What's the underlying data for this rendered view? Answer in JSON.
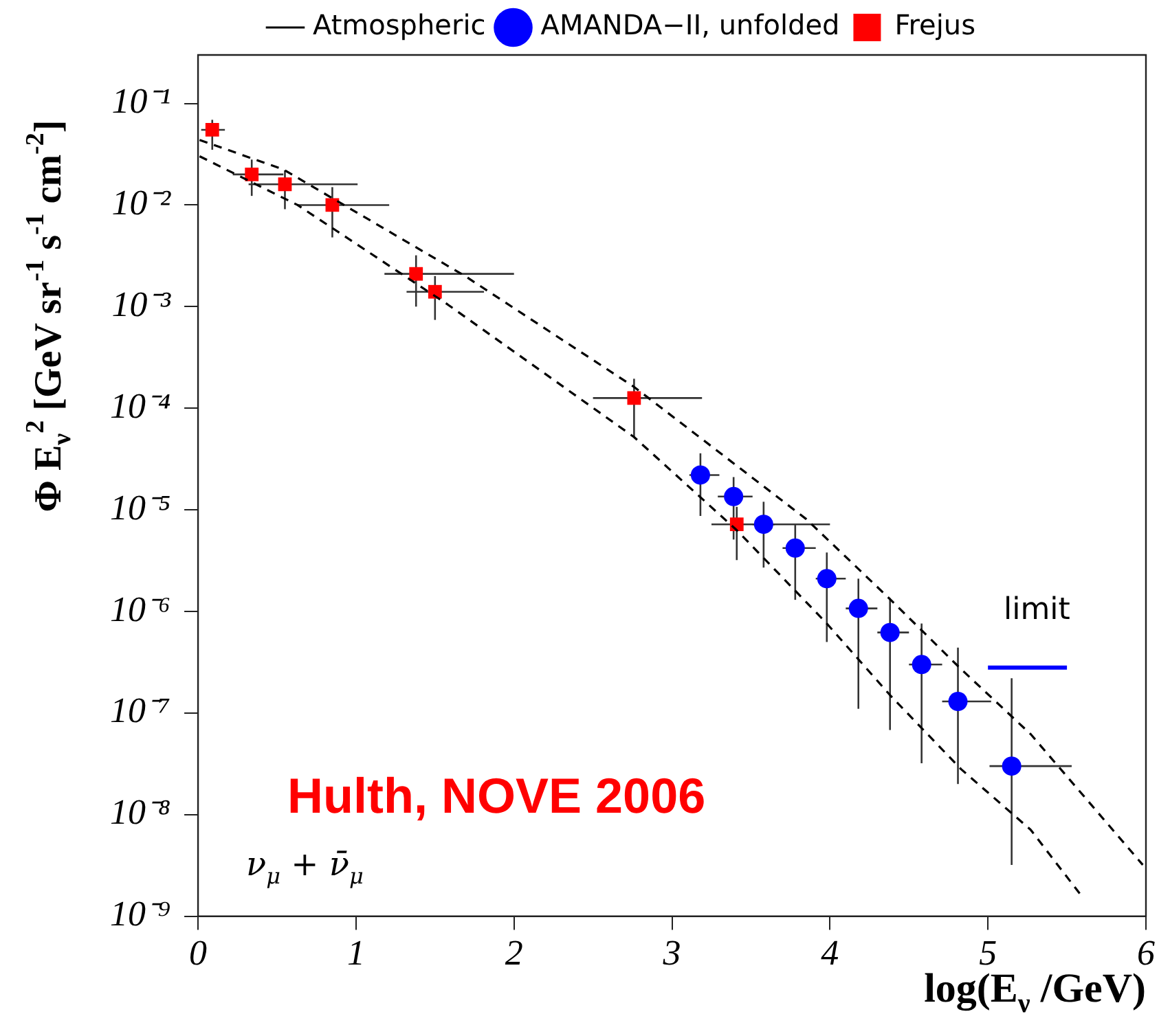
{
  "chart_data": {
    "type": "scatter",
    "xlabel": "log(E$_{ν}$ /GeV)",
    "ylabel": "Φ E$_{ν}$$^{2}$ [GeV sr$^{-1}$ s$^{-1}$ cm$^{-2}$]",
    "xlim": [
      0,
      6
    ],
    "xticks": [
      0,
      1,
      2,
      3,
      4,
      5,
      6
    ],
    "ylim": [
      1e-09,
      0.3
    ],
    "yticks": [
      {
        "value": 1e-09,
        "label": "10⁻⁹"
      },
      {
        "value": 1e-08,
        "label": "10⁻⁸"
      },
      {
        "value": 1e-07,
        "label": "10⁻⁷"
      },
      {
        "value": 1e-06,
        "label": "10⁻⁶"
      },
      {
        "value": 1e-05,
        "label": "10⁻⁵"
      },
      {
        "value": 0.0001,
        "label": "10⁻⁴"
      },
      {
        "value": 0.001,
        "label": "10⁻³"
      },
      {
        "value": 0.01,
        "label": "10⁻²"
      },
      {
        "value": 0.1,
        "label": "10⁻¹"
      }
    ],
    "log": "y",
    "grid": false,
    "legend": "top",
    "annotations": [
      "Hulth, NOVE 2006",
      "ν$_{μ}$ + ν̄$_{μ}$",
      "limit"
    ],
    "series": [
      {
        "name": "Atmospheric",
        "type": "line",
        "color": "#000000",
        "line_style": "dashed",
        "marker": "none",
        "x": [
          0.01,
          0.54,
          1.69,
          2.76,
          3.85,
          4.38,
          4.83,
          5.27,
          5.98
        ],
        "values": [
          0.0437,
          0.0224,
          0.002,
          0.000162,
          8.1e-06,
          1.32e-06,
          2.7e-07,
          6.2e-08,
          3.2e-09
        ]
      },
      {
        "type": "line",
        "color": "#000000",
        "line_style": "dashed",
        "marker": "none",
        "x": [
          0.01,
          0.63,
          1.58,
          2.76,
          3.41,
          3.97,
          4.38,
          4.83,
          5.27,
          5.59
        ],
        "values": [
          0.0302,
          0.01,
          0.00105,
          5.2e-05,
          6.3e-06,
          7.9e-07,
          1.5e-07,
          2.8e-08,
          7.1e-09,
          1.6e-09
        ]
      },
      {
        "name": "AMANDA−II, unfolded",
        "type": "scatter",
        "color": "#0000ff",
        "marker": "circle",
        "x": [
          3.18,
          3.39,
          3.58,
          3.78,
          3.98,
          4.18,
          4.38,
          4.58,
          4.81,
          5.15
        ],
        "values": [
          2.2e-05,
          1.35e-05,
          7.2e-06,
          4.2e-06,
          2.1e-06,
          1.07e-06,
          6.2e-07,
          3e-07,
          1.3e-07,
          3e-08
        ],
        "errors": [
          [
            8.7e-06,
            3.6e-05
          ],
          [
            5.1e-06,
            2.1e-05
          ],
          [
            2.7e-06,
            1.2e-05
          ],
          [
            1.3e-06,
            7.1e-06
          ],
          [
            5e-07,
            3.8e-06
          ],
          [
            1.1e-07,
            2.1e-06
          ],
          [
            6.8e-08,
            1.35e-06
          ],
          [
            3.2e-08,
            7.6e-07
          ],
          [
            2e-08,
            4.4e-07
          ],
          [
            3.2e-09,
            2.2e-07
          ]
        ],
        "xerrors": [
          [
            3.11,
            3.3
          ],
          [
            3.29,
            3.51
          ],
          [
            3.51,
            3.65
          ],
          [
            3.7,
            3.91
          ],
          [
            3.91,
            4.1
          ],
          [
            4.1,
            4.3
          ],
          [
            4.3,
            4.5
          ],
          [
            4.5,
            4.71
          ],
          [
            4.71,
            5.02
          ],
          [
            5.01,
            5.53
          ]
        ]
      },
      {
        "name": "Frejus",
        "type": "scatter",
        "color": "#ff0000",
        "marker": "square",
        "x": [
          0.09,
          0.34,
          0.55,
          0.85,
          1.38,
          1.5,
          2.76,
          3.41
        ],
        "values": [
          0.055,
          0.02,
          0.016,
          0.01,
          0.0021,
          0.0014,
          0.000126,
          7.2e-06
        ],
        "errors": [
          [
            0.035,
            0.069
          ],
          [
            0.0123,
            0.028
          ],
          [
            0.0091,
            0.022
          ],
          [
            0.0048,
            0.015
          ],
          [
            0.001,
            0.0032
          ],
          [
            0.00074,
            0.002
          ],
          [
            5.2e-05,
            0.000195
          ],
          [
            3.2e-06,
            1.07e-05
          ]
        ],
        "xerrors": [
          [
            0.02,
            0.17
          ],
          [
            0.22,
            0.54
          ],
          [
            0.32,
            1.01
          ],
          [
            0.63,
            1.21
          ],
          [
            1.18,
            2.0
          ],
          [
            1.32,
            1.81
          ],
          [
            2.5,
            3.19
          ],
          [
            3.25,
            4.0
          ]
        ]
      },
      {
        "type": "line",
        "color": "#0000ff",
        "line_style": "solid",
        "marker": "none",
        "x": [
          5.0,
          5.5
        ],
        "values": [
          2.8e-07,
          2.8e-07
        ]
      }
    ]
  }
}
